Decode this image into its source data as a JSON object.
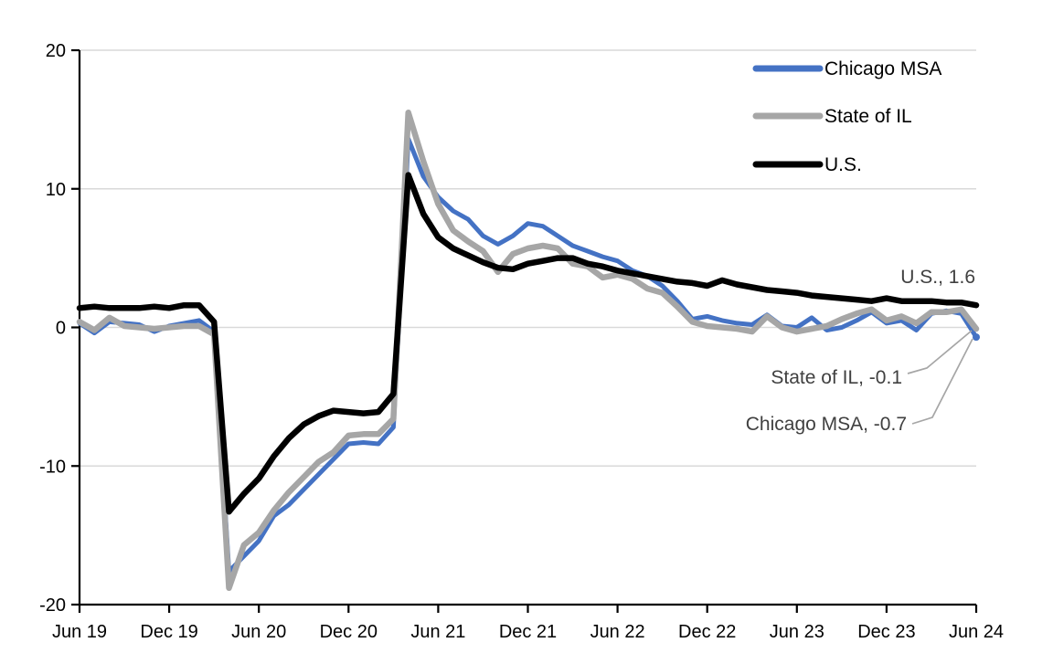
{
  "chart_data": {
    "type": "line",
    "title": "",
    "x_axis": {
      "tick_labels": [
        "Jun 19",
        "Dec 19",
        "Jun 20",
        "Dec 20",
        "Jun 21",
        "Dec 21",
        "Jun 22",
        "Dec 22",
        "Jun 23",
        "Dec 23",
        "Jun 24"
      ],
      "unit": "monthly",
      "start": "Jun 2019",
      "end": "Jun 2024",
      "points_per_series": 61
    },
    "y_axis": {
      "ticks": [
        20,
        10,
        0,
        -10,
        -20
      ],
      "tick_labels": [
        "20",
        "10",
        "0",
        "-10",
        "-20"
      ],
      "ylim": [
        -20,
        20
      ]
    },
    "grid": true,
    "legend_position": "top-right",
    "series": [
      {
        "name": "Chicago MSA",
        "color": "#4472C4",
        "end_value": -0.7,
        "values": [
          0.3,
          -0.4,
          0.4,
          0.3,
          0.2,
          -0.3,
          0.1,
          0.3,
          0.5,
          -0.3,
          -17.6,
          -16.5,
          -15.4,
          -13.6,
          -12.8,
          -11.7,
          -10.6,
          -9.5,
          -8.4,
          -8.3,
          -8.4,
          -7.2,
          13.6,
          10.9,
          9.4,
          8.4,
          7.8,
          6.6,
          6.0,
          6.6,
          7.5,
          7.3,
          6.6,
          5.9,
          5.5,
          5.1,
          4.8,
          4.1,
          3.7,
          3.0,
          1.9,
          0.6,
          0.8,
          0.5,
          0.3,
          0.2,
          0.9,
          0.1,
          0.0,
          0.7,
          -0.2,
          0.0,
          0.5,
          1.1,
          0.3,
          0.5,
          -0.2,
          1.0,
          1.2,
          1.0,
          -0.7
        ]
      },
      {
        "name": "State of IL",
        "color": "#A6A6A6",
        "end_value": -0.1,
        "values": [
          0.4,
          -0.2,
          0.7,
          0.1,
          0.0,
          -0.1,
          0.0,
          0.1,
          0.1,
          -0.5,
          -18.8,
          -15.7,
          -14.8,
          -13.2,
          -11.9,
          -10.8,
          -9.7,
          -9.0,
          -7.8,
          -7.7,
          -7.7,
          -6.6,
          15.5,
          12.0,
          8.9,
          7.0,
          6.2,
          5.5,
          4.0,
          5.3,
          5.7,
          5.9,
          5.7,
          4.6,
          4.4,
          3.6,
          3.8,
          3.5,
          2.8,
          2.5,
          1.5,
          0.4,
          0.1,
          0.0,
          -0.1,
          -0.3,
          0.8,
          0.0,
          -0.3,
          -0.1,
          0.1,
          0.6,
          1.0,
          1.3,
          0.5,
          0.8,
          0.3,
          1.1,
          1.1,
          1.3,
          -0.1
        ]
      },
      {
        "name": "U.S.",
        "color": "#000000",
        "end_value": 1.6,
        "values": [
          1.4,
          1.5,
          1.4,
          1.4,
          1.4,
          1.5,
          1.4,
          1.6,
          1.6,
          0.4,
          -13.3,
          -12.0,
          -10.9,
          -9.3,
          -8.0,
          -7.0,
          -6.4,
          -6.0,
          -6.1,
          -6.2,
          -6.1,
          -4.8,
          11.0,
          8.2,
          6.5,
          5.7,
          5.2,
          4.7,
          4.3,
          4.2,
          4.6,
          4.8,
          5.0,
          5.0,
          4.6,
          4.4,
          4.1,
          3.9,
          3.7,
          3.5,
          3.3,
          3.2,
          3.0,
          3.4,
          3.1,
          2.9,
          2.7,
          2.6,
          2.5,
          2.3,
          2.2,
          2.1,
          2.0,
          1.9,
          2.1,
          1.9,
          1.9,
          1.9,
          1.8,
          1.8,
          1.6
        ]
      }
    ],
    "annotations": [
      {
        "text": "U.S., 1.6",
        "series": "U.S.",
        "value": 1.6,
        "leader": false
      },
      {
        "text": "State of IL, -0.1",
        "series": "State of IL",
        "value": -0.1,
        "leader": true
      },
      {
        "text": "Chicago MSA, -0.7",
        "series": "Chicago MSA",
        "value": -0.7,
        "leader": true
      }
    ],
    "colors": {
      "gridline": "#D9D9D9",
      "axis": "#000000",
      "annotation_text": "#404040",
      "leader_line": "#A6A6A6",
      "background": "#FFFFFF"
    }
  }
}
